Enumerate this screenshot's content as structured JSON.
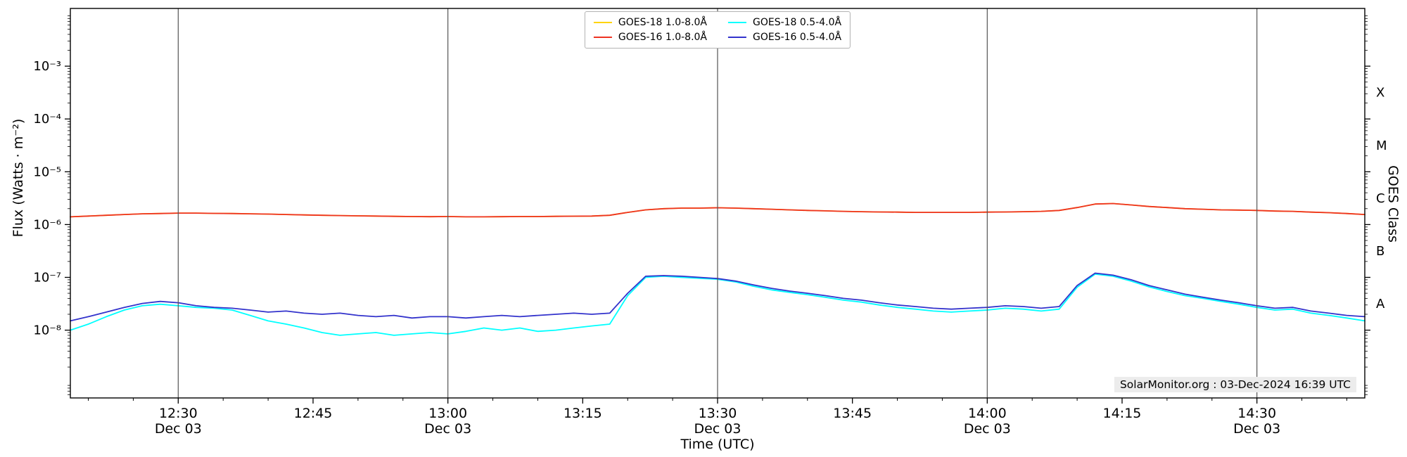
{
  "chart_data": {
    "type": "line",
    "title": "",
    "watermark": "SolarMonitor.org : 03-Dec-2024 16:39 UTC",
    "colors": {
      "grid": "#555555",
      "frame": "#000000",
      "background": "#ffffff"
    },
    "sample_step_minutes": 2,
    "x_axis": {
      "label": "Time (UTC)",
      "start_time": "12:18",
      "end_time": "14:42",
      "start_minutes": 0,
      "end_minutes": 144,
      "ticks": [
        {
          "label": "12:30",
          "minutes": 12,
          "sub": "Dec 03",
          "line": true
        },
        {
          "label": "12:45",
          "minutes": 27,
          "sub": "",
          "line": false
        },
        {
          "label": "13:00",
          "minutes": 42,
          "sub": "Dec 03",
          "line": true
        },
        {
          "label": "13:15",
          "minutes": 57,
          "sub": "",
          "line": false
        },
        {
          "label": "13:30",
          "minutes": 72,
          "sub": "Dec 03",
          "line": true
        },
        {
          "label": "13:45",
          "minutes": 87,
          "sub": "",
          "line": false
        },
        {
          "label": "14:00",
          "minutes": 102,
          "sub": "Dec 03",
          "line": true
        },
        {
          "label": "14:15",
          "minutes": 117,
          "sub": "",
          "line": false
        },
        {
          "label": "14:30",
          "minutes": 132,
          "sub": "Dec 03",
          "line": true
        }
      ]
    },
    "y_axis": {
      "label": "Flux (Watts · m⁻²)",
      "scale": "log",
      "min": 5.2e-10,
      "max": 0.0124,
      "ticks": [
        {
          "label": "10⁻³",
          "value": 0.001
        },
        {
          "label": "10⁻⁴",
          "value": 0.0001
        },
        {
          "label": "10⁻⁵",
          "value": 1e-05
        },
        {
          "label": "10⁻⁶",
          "value": 1e-06
        },
        {
          "label": "10⁻⁷",
          "value": 1e-07
        },
        {
          "label": "10⁻⁸",
          "value": 1e-08
        }
      ]
    },
    "right_axis": {
      "label": "GOES Class",
      "classes": [
        {
          "label": "X",
          "value": 0.000316
        },
        {
          "label": "M",
          "value": 3.16e-05
        },
        {
          "label": "C",
          "value": 3.16e-06
        },
        {
          "label": "B",
          "value": 3.16e-07
        },
        {
          "label": "A",
          "value": 3.16e-08
        }
      ]
    },
    "series": [
      {
        "name": "GOES-18 1.0-8.0Å",
        "color": "#ffd400",
        "values": [
          1.4e-06,
          1.45e-06,
          1.5e-06,
          1.55e-06,
          1.6e-06,
          1.62e-06,
          1.65e-06,
          1.65e-06,
          1.63e-06,
          1.62e-06,
          1.6e-06,
          1.58e-06,
          1.55e-06,
          1.52e-06,
          1.5e-06,
          1.48e-06,
          1.46e-06,
          1.45e-06,
          1.43e-06,
          1.42e-06,
          1.41e-06,
          1.42e-06,
          1.4e-06,
          1.4e-06,
          1.41e-06,
          1.42e-06,
          1.42e-06,
          1.43e-06,
          1.44e-06,
          1.45e-06,
          1.5e-06,
          1.7e-06,
          1.9e-06,
          2e-06,
          2.05e-06,
          2.05e-06,
          2.08e-06,
          2.05e-06,
          2e-06,
          1.95e-06,
          1.9e-06,
          1.85e-06,
          1.82e-06,
          1.78e-06,
          1.75e-06,
          1.73e-06,
          1.72e-06,
          1.7e-06,
          1.7e-06,
          1.7e-06,
          1.7e-06,
          1.72e-06,
          1.73e-06,
          1.75e-06,
          1.78e-06,
          1.85e-06,
          2.1e-06,
          2.45e-06,
          2.5e-06,
          2.35e-06,
          2.2e-06,
          2.1e-06,
          2e-06,
          1.95e-06,
          1.9e-06,
          1.88e-06,
          1.85e-06,
          1.8e-06,
          1.78e-06,
          1.72e-06,
          1.68e-06,
          1.62e-06,
          1.55e-06
        ]
      },
      {
        "name": "GOES-16 1.0-8.0Å",
        "color": "#ee3322",
        "values": [
          1.4e-06,
          1.45e-06,
          1.5e-06,
          1.55e-06,
          1.6e-06,
          1.62e-06,
          1.65e-06,
          1.65e-06,
          1.63e-06,
          1.62e-06,
          1.6e-06,
          1.58e-06,
          1.55e-06,
          1.52e-06,
          1.5e-06,
          1.48e-06,
          1.46e-06,
          1.45e-06,
          1.43e-06,
          1.42e-06,
          1.41e-06,
          1.42e-06,
          1.4e-06,
          1.4e-06,
          1.41e-06,
          1.42e-06,
          1.42e-06,
          1.43e-06,
          1.44e-06,
          1.45e-06,
          1.5e-06,
          1.7e-06,
          1.9e-06,
          2e-06,
          2.05e-06,
          2.05e-06,
          2.08e-06,
          2.05e-06,
          2e-06,
          1.95e-06,
          1.9e-06,
          1.85e-06,
          1.82e-06,
          1.78e-06,
          1.75e-06,
          1.73e-06,
          1.72e-06,
          1.7e-06,
          1.7e-06,
          1.7e-06,
          1.7e-06,
          1.72e-06,
          1.73e-06,
          1.75e-06,
          1.78e-06,
          1.85e-06,
          2.1e-06,
          2.45e-06,
          2.5e-06,
          2.35e-06,
          2.2e-06,
          2.1e-06,
          2e-06,
          1.95e-06,
          1.9e-06,
          1.88e-06,
          1.85e-06,
          1.8e-06,
          1.78e-06,
          1.72e-06,
          1.68e-06,
          1.62e-06,
          1.55e-06
        ]
      },
      {
        "name": "GOES-18 0.5-4.0Å",
        "color": "#00ffff",
        "values": [
          1e-08,
          1.3e-08,
          1.8e-08,
          2.4e-08,
          2.9e-08,
          3.1e-08,
          2.9e-08,
          2.7e-08,
          2.6e-08,
          2.4e-08,
          1.9e-08,
          1.5e-08,
          1.3e-08,
          1.1e-08,
          9e-09,
          8e-09,
          8.5e-09,
          9e-09,
          8e-09,
          8.5e-09,
          9e-09,
          8.5e-09,
          9.5e-09,
          1.1e-08,
          1e-08,
          1.1e-08,
          9.5e-09,
          1e-08,
          1.1e-08,
          1.2e-08,
          1.3e-08,
          4.5e-08,
          1e-07,
          1.05e-07,
          1e-07,
          9.6e-08,
          9.2e-08,
          8.2e-08,
          6.8e-08,
          5.8e-08,
          5.2e-08,
          4.7e-08,
          4.2e-08,
          3.7e-08,
          3.4e-08,
          3e-08,
          2.7e-08,
          2.5e-08,
          2.3e-08,
          2.2e-08,
          2.3e-08,
          2.4e-08,
          2.6e-08,
          2.5e-08,
          2.3e-08,
          2.5e-08,
          6.5e-08,
          1.15e-07,
          1.05e-07,
          8.5e-08,
          6.6e-08,
          5.4e-08,
          4.5e-08,
          4e-08,
          3.5e-08,
          3.1e-08,
          2.7e-08,
          2.4e-08,
          2.5e-08,
          2.1e-08,
          1.9e-08,
          1.7e-08,
          1.5e-08
        ]
      },
      {
        "name": "GOES-16 0.5-4.0Å",
        "color": "#3333cc",
        "values": [
          1.5e-08,
          1.8e-08,
          2.2e-08,
          2.7e-08,
          3.2e-08,
          3.5e-08,
          3.3e-08,
          2.9e-08,
          2.7e-08,
          2.6e-08,
          2.4e-08,
          2.2e-08,
          2.3e-08,
          2.1e-08,
          2e-08,
          2.1e-08,
          1.9e-08,
          1.8e-08,
          1.9e-08,
          1.7e-08,
          1.8e-08,
          1.8e-08,
          1.7e-08,
          1.8e-08,
          1.9e-08,
          1.8e-08,
          1.9e-08,
          2e-08,
          2.1e-08,
          2e-08,
          2.1e-08,
          5e-08,
          1.05e-07,
          1.08e-07,
          1.05e-07,
          1e-07,
          9.5e-08,
          8.5e-08,
          7.2e-08,
          6.2e-08,
          5.5e-08,
          5e-08,
          4.5e-08,
          4e-08,
          3.7e-08,
          3.3e-08,
          3e-08,
          2.8e-08,
          2.6e-08,
          2.5e-08,
          2.6e-08,
          2.7e-08,
          2.9e-08,
          2.8e-08,
          2.6e-08,
          2.8e-08,
          7e-08,
          1.2e-07,
          1.1e-07,
          9e-08,
          7e-08,
          5.8e-08,
          4.8e-08,
          4.2e-08,
          3.7e-08,
          3.3e-08,
          2.9e-08,
          2.6e-08,
          2.7e-08,
          2.3e-08,
          2.1e-08,
          1.9e-08,
          1.8e-08
        ]
      }
    ]
  }
}
